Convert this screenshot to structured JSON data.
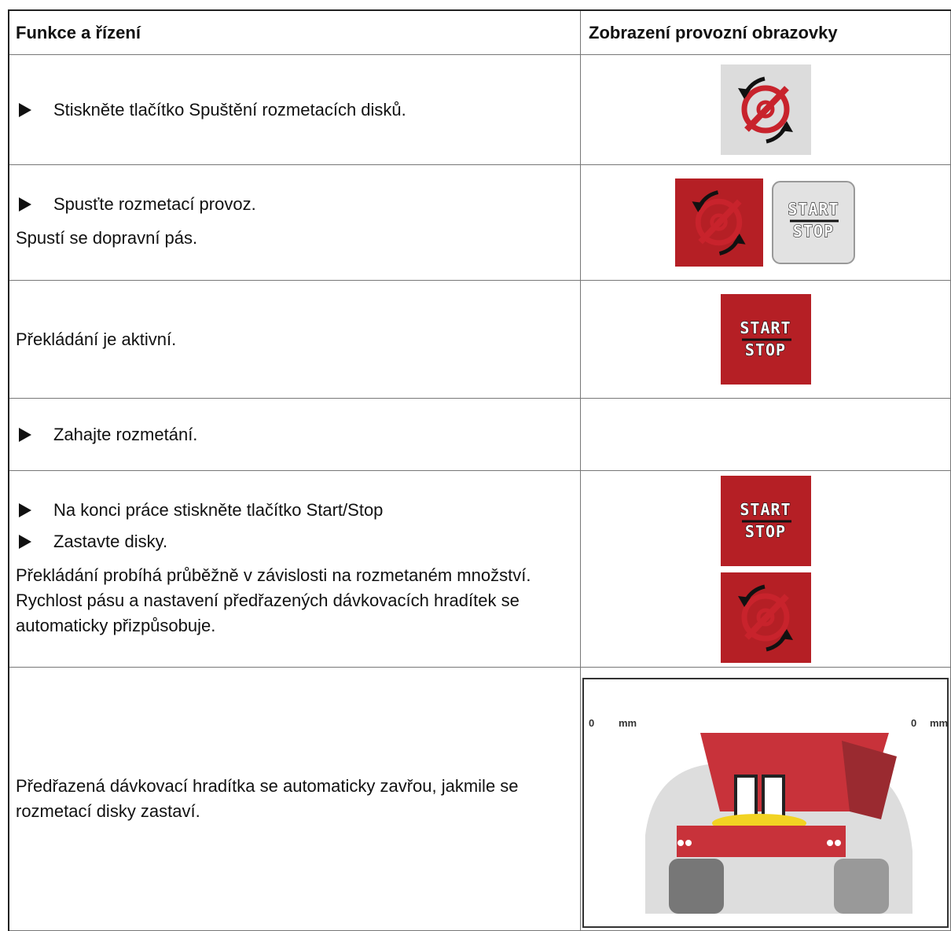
{
  "table": {
    "header": [
      "Funkce a řízení",
      "Zobrazení provozní obrazovky"
    ],
    "rows": [
      {
        "steps": [
          "Stiskněte tlačítko Spuštění rozmetacích disků."
        ]
      },
      {
        "steps": [
          "Spusťte rozmetací provoz."
        ],
        "notes": [
          "Spustí se dopravní pás."
        ],
        "start_stop": {
          "start": "START",
          "stop": "STOP"
        }
      },
      {
        "notes": [
          "Překládání je aktivní."
        ],
        "start_stop": {
          "start": "START",
          "stop": "STOP"
        }
      },
      {
        "steps": [
          "Zahajte rozmetání."
        ]
      },
      {
        "steps": [
          "Na konci práce stiskněte tlačítko Start/Stop",
          "Zastavte disky."
        ],
        "notes": [
          "Překládání probíhá průběžně v závislosti na rozmetaném množství. Rychlost pásu a nastavení předřazených dávkovacích hradítek se automaticky přizpůsobuje."
        ],
        "start_stop": {
          "start": "START",
          "stop": "STOP"
        }
      },
      {
        "notes": [
          "Předřazená dávkovací hradítka se automaticky zavřou, jakmile se rozmetací disky zastaví."
        ],
        "screen": {
          "left_value": "0",
          "left_unit": "mm",
          "right_value": "0",
          "right_unit": "mm"
        }
      }
    ]
  }
}
